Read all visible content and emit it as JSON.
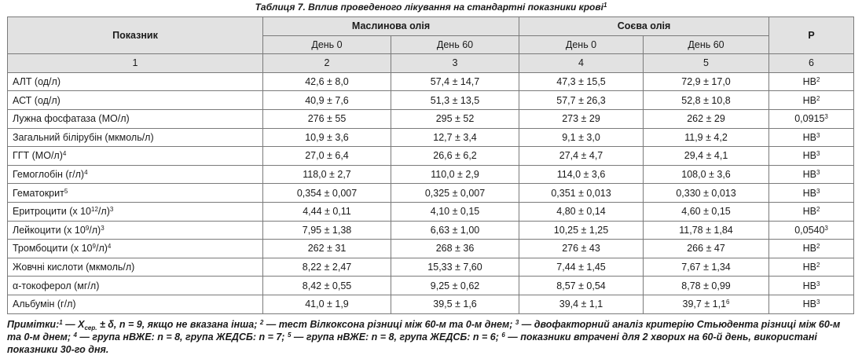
{
  "caption": "Таблиця 7. Вплив проведеного лікування на стандартні показники крові",
  "caption_sup": "1",
  "header": {
    "indicator": "Показник",
    "olive": "Маслинова олія",
    "soy": "Соєва олія",
    "p": "Р",
    "day0": "День 0",
    "day60": "День 60",
    "col_numbers": [
      "1",
      "2",
      "3",
      "4",
      "5",
      "6"
    ]
  },
  "rows": [
    {
      "name": "АЛТ (од/л)",
      "name_sup": "",
      "olive0": "42,6 ± 8,0",
      "olive60": "57,4 ± 14,7",
      "soy0": "47,3 ± 15,5",
      "soy60": "72,9 ± 17,0",
      "soy60_sup": "",
      "p": "НВ",
      "p_sup": "2"
    },
    {
      "name": "АСТ (од/л)",
      "name_sup": "",
      "olive0": "40,9 ± 7,6",
      "olive60": "51,3 ± 13,5",
      "soy0": "57,7 ± 26,3",
      "soy60": "52,8 ± 10,8",
      "soy60_sup": "",
      "p": "НВ",
      "p_sup": "2"
    },
    {
      "name": "Лужна фосфатаза (МО/л)",
      "name_sup": "",
      "olive0": "276 ± 55",
      "olive60": "295 ± 52",
      "soy0": "273 ± 29",
      "soy60": "262 ± 29",
      "soy60_sup": "",
      "p": "0,0915",
      "p_sup": "3"
    },
    {
      "name": "Загальний білірубін (мкмоль/л)",
      "name_sup": "",
      "olive0": "10,9 ± 3,6",
      "olive60": "12,7 ± 3,4",
      "soy0": "9,1 ± 3,0",
      "soy60": "11,9 ± 4,2",
      "soy60_sup": "",
      "p": "НВ",
      "p_sup": "3"
    },
    {
      "name": "ГГТ (МО/л)",
      "name_sup": "4",
      "olive0": "27,0 ± 6,4",
      "olive60": "26,6 ± 6,2",
      "soy0": "27,4 ± 4,7",
      "soy60": "29,4 ± 4,1",
      "soy60_sup": "",
      "p": "НВ",
      "p_sup": "3"
    },
    {
      "name": "Гемоглобін (г/л)",
      "name_sup": "4",
      "olive0": "118,0 ± 2,7",
      "olive60": "110,0 ± 2,9",
      "soy0": "114,0 ± 3,6",
      "soy60": "108,0 ± 3,6",
      "soy60_sup": "",
      "p": "НВ",
      "p_sup": "3"
    },
    {
      "name": "Гематокрит",
      "name_sup": "5",
      "olive0": "0,354 ± 0,007",
      "olive60": "0,325 ± 0,007",
      "soy0": "0,351 ± 0,013",
      "soy60": "0,330 ± 0,013",
      "soy60_sup": "",
      "p": "НВ",
      "p_sup": "3"
    },
    {
      "name_pre": "Еритроцити (х 10",
      "name_exp": "12",
      "name_post": "/л)",
      "name_sup": "3",
      "olive0": "4,44 ± 0,11",
      "olive60": "4,10 ± 0,15",
      "soy0": "4,80 ± 0,14",
      "soy60": "4,60 ± 0,15",
      "soy60_sup": "",
      "p": "НВ",
      "p_sup": "2"
    },
    {
      "name_pre": "Лейкоцити (х 10",
      "name_exp": "9",
      "name_post": "/л)",
      "name_sup": "3",
      "olive0": "7,95 ± 1,38",
      "olive60": "6,63 ± 1,00",
      "soy0": "10,25 ± 1,25",
      "soy60": "11,78 ± 1,84",
      "soy60_sup": "",
      "p": "0,0540",
      "p_sup": "3"
    },
    {
      "name_pre": "Тромбоцити (х 10",
      "name_exp": "9",
      "name_post": "/л)",
      "name_sup": "4",
      "olive0": "262 ± 31",
      "olive60": "268 ± 36",
      "soy0": "276 ± 43",
      "soy60": "266 ± 47",
      "soy60_sup": "",
      "p": "НВ",
      "p_sup": "2"
    },
    {
      "name": "Жовчні кислоти (мкмоль/л)",
      "name_sup": "",
      "olive0": "8,22 ± 2,47",
      "olive60": "15,33 ± 7,60",
      "soy0": "7,44 ± 1,45",
      "soy60": "7,67 ± 1,34",
      "soy60_sup": "",
      "p": "НВ",
      "p_sup": "2"
    },
    {
      "name": "α-токоферол (мг/л)",
      "name_sup": "",
      "olive0": "8,42 ± 0,55",
      "olive60": "9,25 ± 0,62",
      "soy0": "8,57 ± 0,54",
      "soy60": "8,78 ± 0,99",
      "soy60_sup": "",
      "p": "НВ",
      "p_sup": "3"
    },
    {
      "name": "Альбумін (г/л)",
      "name_sup": "",
      "olive0": "41,0 ± 1,9",
      "olive60": "39,5 ± 1,6",
      "soy0": "39,4 ± 1,1",
      "soy60": "39,7 ± 1,1",
      "soy60_sup": "6",
      "p": "НВ",
      "p_sup": "3"
    }
  ],
  "notes": {
    "label": "Примітки:",
    "n1": "1",
    "t1": " — X",
    "sub": "сер.",
    "t2": " ± δ, n = 9, якщо не вказана інша; ",
    "n2": "2",
    "t3": " — тест Вілкоксона різниці між 60-м та 0-м днем; ",
    "n3": "3",
    "t4": " — двофакторний аналіз критерію Стьюдента різниці між 60-м та 0-м днем; ",
    "n4": "4",
    "t5": " — група нВЖЕ: n = 8, група ЖЕДСБ: n = 7; ",
    "n5": "5",
    "t6": " — група нВЖЕ: n = 8, група ЖЕДСБ: n = 6; ",
    "n6": "6",
    "t7": " — показники втрачені для 2 хворих на 60-й день, використані показники 30-го дня."
  }
}
